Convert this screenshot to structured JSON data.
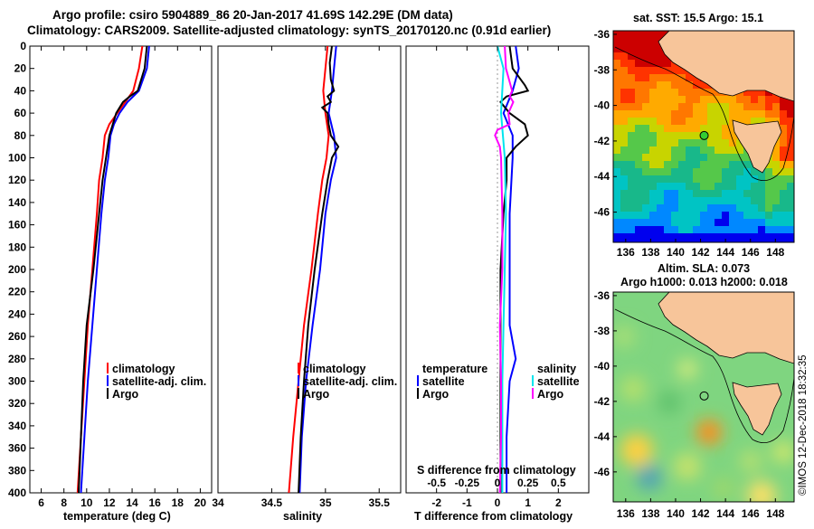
{
  "header": {
    "line1": "Argo profile: csiro 5904889_86 20-Jan-2017 41.69S 142.29E (DM data)",
    "line2": "Climatology: CARS2009. Satellite-adjusted climatology: synTS_20170120.nc (0.91d earlier)"
  },
  "colors": {
    "climatology": "#ff0000",
    "satellite": "#0000ff",
    "argo": "#000000",
    "salinity_satellite": "#00e5ee",
    "salinity_argo": "#ff00ff"
  },
  "chart_data": [
    {
      "type": "line",
      "id": "temperature",
      "xlabel": "temperature (deg C)",
      "ylabel": "",
      "xlim": [
        5,
        21
      ],
      "ylim": [
        0,
        400
      ],
      "xticks": [
        "6",
        "8",
        "10",
        "12",
        "14",
        "16",
        "18",
        "20"
      ],
      "yticks": [
        "0",
        "20",
        "40",
        "60",
        "80",
        "100",
        "120",
        "140",
        "160",
        "180",
        "200",
        "220",
        "240",
        "260",
        "280",
        "300",
        "320",
        "340",
        "360",
        "380",
        "400"
      ],
      "legend": [
        "climatology",
        "satellite-adj. clim.",
        "Argo"
      ],
      "series": [
        {
          "name": "climatology",
          "color": "climatology",
          "depth": [
            0,
            20,
            40,
            50,
            60,
            70,
            80,
            100,
            120,
            150,
            200,
            250,
            300,
            350,
            400
          ],
          "values": [
            14.9,
            14.6,
            14.1,
            13.4,
            12.7,
            12.0,
            11.6,
            11.4,
            11.1,
            10.9,
            10.5,
            10.1,
            9.8,
            9.5,
            9.2
          ]
        },
        {
          "name": "satellite-adj. clim.",
          "color": "satellite",
          "depth": [
            0,
            20,
            40,
            50,
            60,
            70,
            80,
            100,
            120,
            150,
            200,
            250,
            300,
            350,
            400
          ],
          "values": [
            15.5,
            15.3,
            14.6,
            13.6,
            12.9,
            12.4,
            12.1,
            11.9,
            11.6,
            11.3,
            10.9,
            10.5,
            10.1,
            9.8,
            9.5
          ]
        },
        {
          "name": "Argo",
          "color": "argo",
          "depth": [
            0,
            20,
            40,
            45,
            50,
            60,
            70,
            80,
            100,
            120,
            150,
            200,
            250,
            300,
            350,
            400
          ],
          "values": [
            15.3,
            15.1,
            14.5,
            13.8,
            13.2,
            12.6,
            12.3,
            12.0,
            11.7,
            11.4,
            11.1,
            10.6,
            10.0,
            9.7,
            9.5,
            9.3
          ]
        }
      ]
    },
    {
      "type": "line",
      "id": "salinity",
      "xlabel": "salinity",
      "ylabel": "",
      "xlim": [
        34.0,
        35.7
      ],
      "ylim": [
        0,
        400
      ],
      "xticks": [
        "34",
        "34.5",
        "35",
        "35.5"
      ],
      "legend": [
        "climatology",
        "satellite-adj. clim.",
        "Argo"
      ],
      "series": [
        {
          "name": "climatology",
          "color": "climatology",
          "depth": [
            0,
            20,
            40,
            60,
            80,
            100,
            120,
            150,
            200,
            250,
            300,
            350,
            400
          ],
          "values": [
            35.02,
            35.0,
            34.98,
            35.0,
            35.03,
            35.01,
            34.97,
            34.93,
            34.87,
            34.8,
            34.75,
            34.7,
            34.66
          ]
        },
        {
          "name": "satellite-adj. clim.",
          "color": "satellite",
          "depth": [
            0,
            20,
            40,
            60,
            80,
            100,
            120,
            150,
            200,
            250,
            300,
            350,
            400
          ],
          "values": [
            35.1,
            35.08,
            35.06,
            35.03,
            35.08,
            35.1,
            35.05,
            35.0,
            34.95,
            34.88,
            34.82,
            34.78,
            34.76
          ]
        },
        {
          "name": "Argo",
          "color": "argo",
          "depth": [
            0,
            15,
            30,
            40,
            45,
            50,
            55,
            60,
            70,
            80,
            90,
            100,
            110,
            120,
            150,
            200,
            250,
            300,
            350,
            400
          ],
          "values": [
            35.06,
            35.04,
            35.05,
            35.08,
            35.02,
            35.05,
            34.97,
            35.02,
            35.03,
            35.05,
            35.12,
            35.06,
            35.04,
            35.02,
            34.97,
            34.9,
            34.84,
            34.8,
            34.77,
            34.75
          ]
        }
      ]
    },
    {
      "type": "line",
      "id": "difference",
      "xlabel": "T difference from climatology",
      "title_inner": "S difference from climatology",
      "xlim": [
        -3,
        3
      ],
      "ylim": [
        0,
        400
      ],
      "xticks": [
        "-2",
        "-1",
        "0",
        "1",
        "2"
      ],
      "sticks": [
        "-0.5",
        "-0.25",
        "0",
        "0.25",
        "0.5"
      ],
      "legend_temperature": {
        "title": "temperature",
        "items": [
          "satellite",
          "Argo"
        ]
      },
      "legend_salinity": {
        "title": "salinity",
        "items": [
          "satellite",
          "Argo"
        ]
      },
      "series": [
        {
          "name": "T satellite",
          "color": "satellite",
          "depth": [
            0,
            20,
            40,
            60,
            80,
            100,
            150,
            200,
            250,
            280,
            300,
            350,
            400
          ],
          "values": [
            0.6,
            0.7,
            0.5,
            0.2,
            0.5,
            0.5,
            0.4,
            0.4,
            0.4,
            0.6,
            0.4,
            0.3,
            0.3
          ]
        },
        {
          "name": "T Argo",
          "color": "argo",
          "depth": [
            0,
            20,
            35,
            40,
            45,
            50,
            60,
            70,
            80,
            90,
            100,
            120,
            150,
            200,
            250,
            300,
            350,
            400
          ],
          "values": [
            0.4,
            0.5,
            0.9,
            1.0,
            0.3,
            0.1,
            0.4,
            0.9,
            1.0,
            0.6,
            0.3,
            0.3,
            0.2,
            0.1,
            0.1,
            0.1,
            0.1,
            0.1
          ]
        },
        {
          "name": "S satellite",
          "color": "salinity_satellite",
          "depth": [
            0,
            20,
            60,
            100,
            150,
            200,
            250,
            300,
            350,
            400
          ],
          "values": [
            0.0,
            0.05,
            0.03,
            0.06,
            0.07,
            0.06,
            0.05,
            0.04,
            0.04,
            0.04
          ]
        },
        {
          "name": "S Argo",
          "color": "salinity_argo",
          "depth": [
            0,
            20,
            40,
            45,
            50,
            60,
            70,
            75,
            80,
            90,
            100,
            150,
            200,
            250,
            300,
            350,
            400
          ],
          "values": [
            0.06,
            0.07,
            0.12,
            0.1,
            0.13,
            0.09,
            0.1,
            0.0,
            -0.02,
            0.02,
            0.03,
            0.04,
            0.04,
            0.02,
            0.03,
            0.03,
            0.02
          ]
        }
      ]
    },
    {
      "type": "heatmap",
      "id": "sst_map",
      "title": "sat. SST: 15.5 Argo: 15.1",
      "xlim": [
        135,
        149.5
      ],
      "ylim": [
        -47.7,
        -35.8
      ],
      "xticks": [
        "136",
        "138",
        "140",
        "142",
        "144",
        "146",
        "148"
      ],
      "yticks": [
        "-36",
        "-38",
        "-40",
        "-42",
        "-44",
        "-46"
      ],
      "argo_position": [
        142.29,
        -41.69
      ]
    },
    {
      "type": "heatmap",
      "id": "sla_map",
      "title": "Altim. SLA: 0.073",
      "subtitle": "Argo h1000: 0.013 h2000: 0.018",
      "xlim": [
        135,
        149.5
      ],
      "ylim": [
        -47.7,
        -35.8
      ],
      "xticks": [
        "136",
        "138",
        "140",
        "142",
        "144",
        "146",
        "148"
      ],
      "yticks": [
        "-36",
        "-38",
        "-40",
        "-42",
        "-44",
        "-46"
      ],
      "argo_position": [
        142.29,
        -41.69
      ]
    }
  ],
  "footer": {
    "credit": "©IMOS 12-Dec-2018 18:32:35"
  }
}
